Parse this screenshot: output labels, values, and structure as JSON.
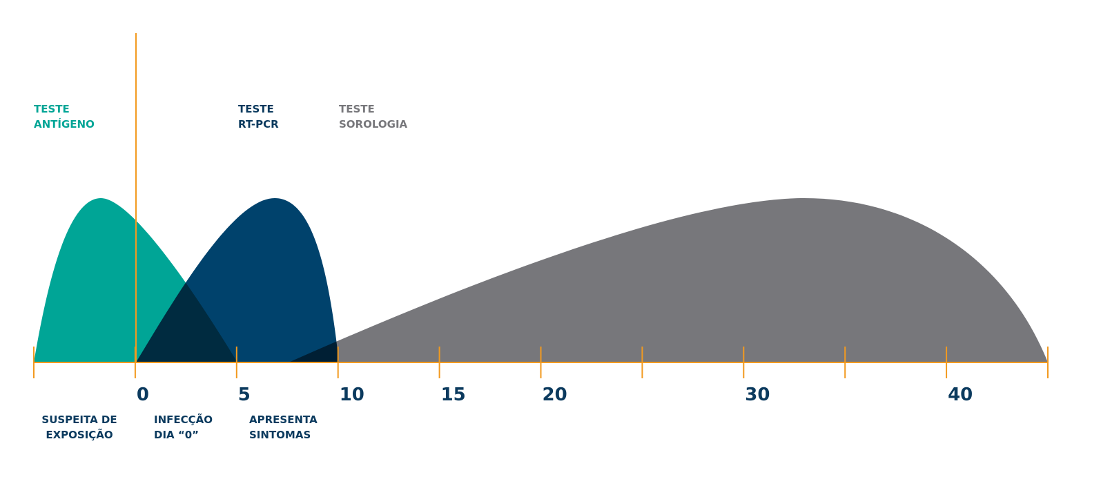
{
  "curves": [
    {
      "lines": [
        "TESTE",
        "ANTÍGENO"
      ]
    },
    {
      "lines": [
        "TESTE",
        "RT-PCR"
      ]
    },
    {
      "lines": [
        "TESTE",
        "SOROLOGIA"
      ]
    }
  ],
  "axis": {
    "tick_labels": [
      "0",
      "5",
      "10",
      "15",
      "20",
      "30",
      "40"
    ]
  },
  "notes": [
    {
      "lines": [
        "SUSPEITA DE",
        "EXPOSIÇÃO"
      ]
    },
    {
      "lines": [
        "INFECÇÃO",
        "DIA “0”"
      ]
    },
    {
      "lines": [
        "APRESENTA",
        "SINTOMAS"
      ]
    }
  ]
}
